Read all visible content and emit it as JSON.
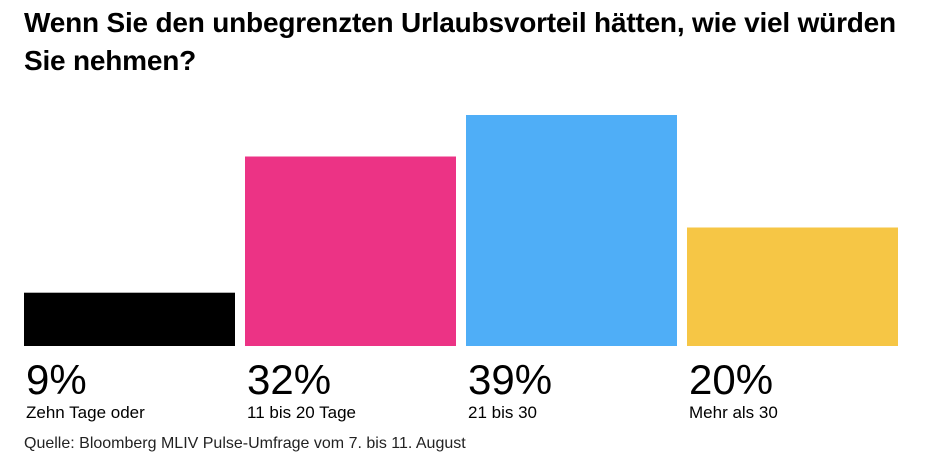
{
  "chart_data": {
    "type": "bar",
    "title": "Wenn Sie den unbegrenzten Urlaubsvorteil hätten, wie viel würden Sie nehmen?",
    "categories": [
      "Zehn Tage oder",
      "11 bis 20 Tage",
      "21 bis 30",
      "Mehr als 30"
    ],
    "values": [
      9,
      32,
      39,
      20
    ],
    "value_labels": [
      "9%",
      "32%",
      "39%",
      "20%"
    ],
    "colors": [
      "#000000",
      "#EC3385",
      "#4FAEF7",
      "#F6C645"
    ],
    "unit": "%",
    "ylim": [
      0,
      39
    ],
    "grid": false,
    "legend": "none"
  },
  "source": "Quelle: Bloomberg MLIV Pulse-Umfrage vom 7. bis 11. August"
}
